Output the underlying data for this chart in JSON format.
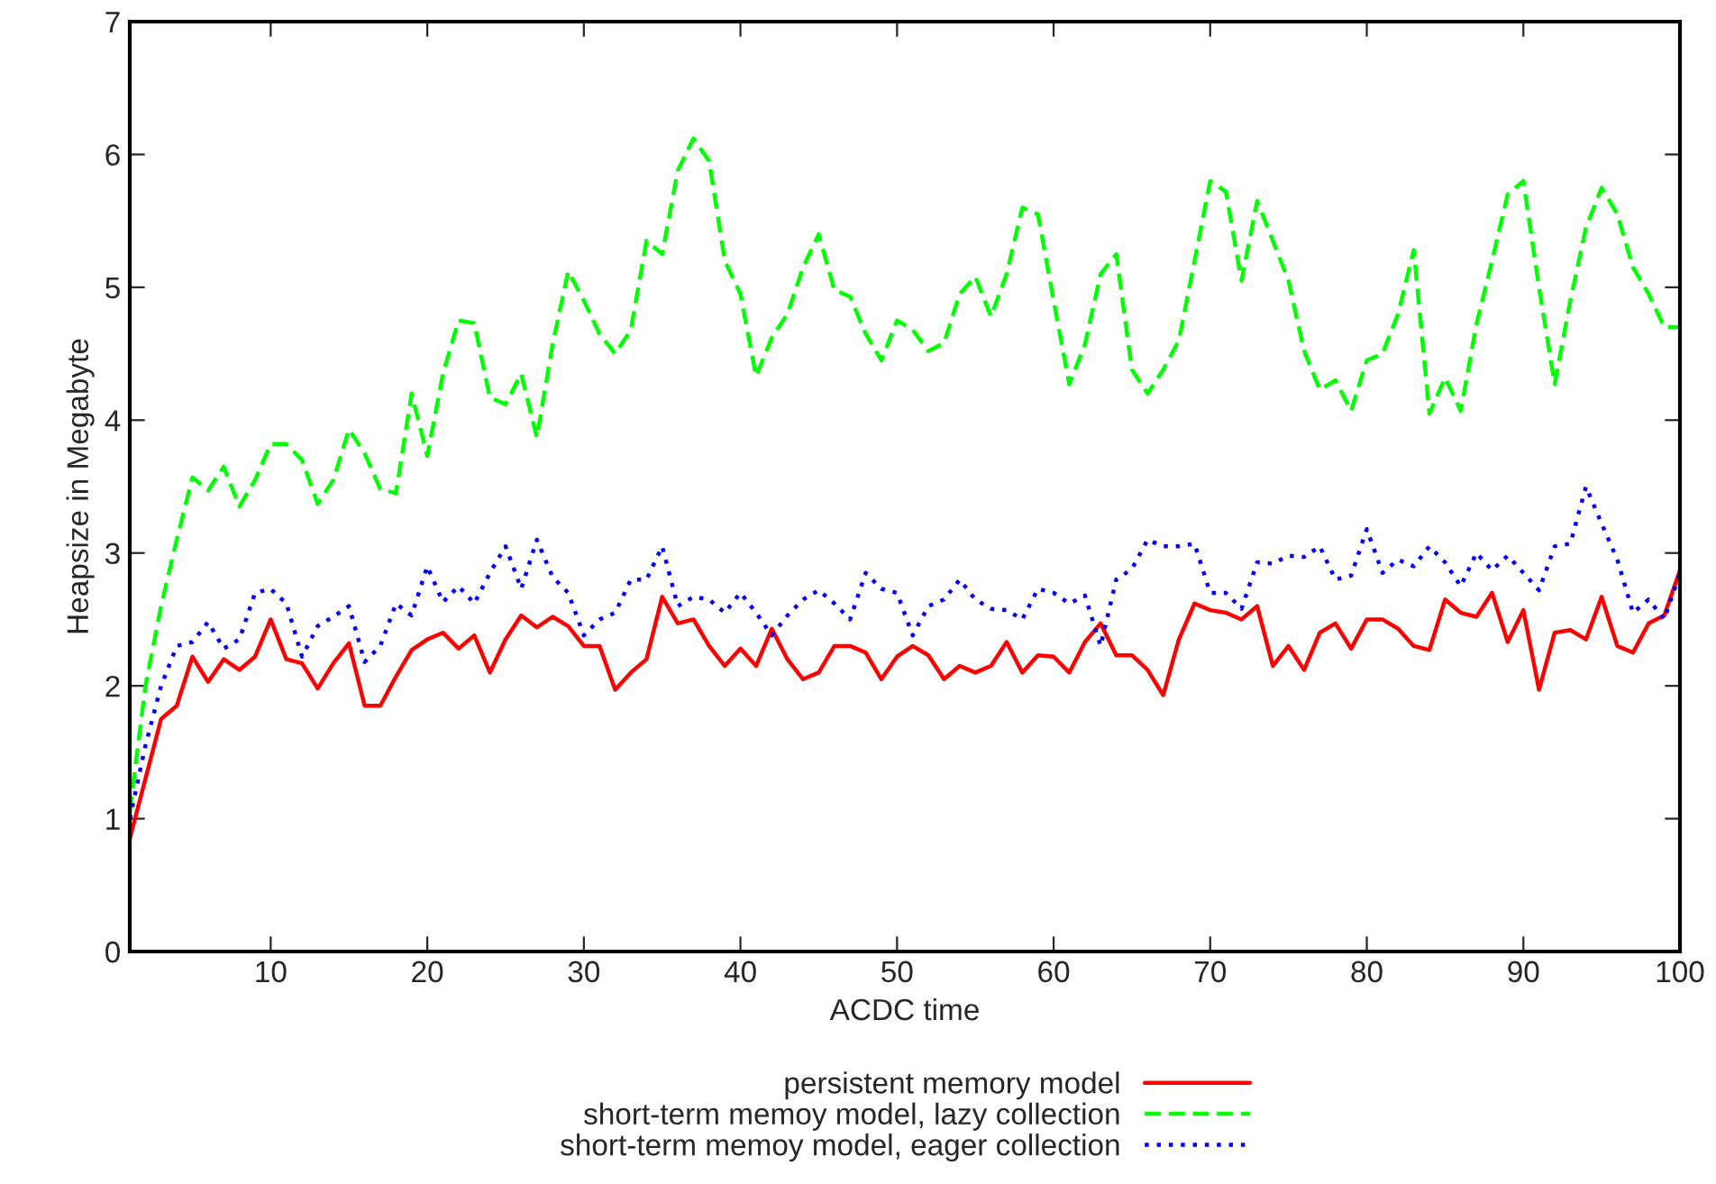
{
  "chart_data": {
    "type": "line",
    "xlabel": "ACDC time",
    "ylabel": "Heapsize in Megabyte",
    "x": [
      1,
      2,
      3,
      4,
      5,
      6,
      7,
      8,
      9,
      10,
      11,
      12,
      13,
      14,
      15,
      16,
      17,
      18,
      19,
      20,
      21,
      22,
      23,
      24,
      25,
      26,
      27,
      28,
      29,
      30,
      31,
      32,
      33,
      34,
      35,
      36,
      37,
      38,
      39,
      40,
      41,
      42,
      43,
      44,
      45,
      46,
      47,
      48,
      49,
      50,
      51,
      52,
      53,
      54,
      55,
      56,
      57,
      58,
      59,
      60,
      61,
      62,
      63,
      64,
      65,
      66,
      67,
      68,
      69,
      70,
      71,
      72,
      73,
      74,
      75,
      76,
      77,
      78,
      79,
      80,
      81,
      82,
      83,
      84,
      85,
      86,
      87,
      88,
      89,
      90,
      91,
      92,
      93,
      94,
      95,
      96,
      97,
      98,
      99,
      100
    ],
    "series": [
      {
        "name": "persistent memory model",
        "color": "#ff0000",
        "line_style": "solid",
        "values": [
          0.85,
          1.3,
          1.75,
          1.85,
          2.22,
          2.03,
          2.2,
          2.12,
          2.22,
          2.5,
          2.2,
          2.17,
          1.98,
          2.17,
          2.32,
          1.85,
          1.85,
          2.07,
          2.27,
          2.35,
          2.4,
          2.28,
          2.38,
          2.1,
          2.35,
          2.53,
          2.44,
          2.52,
          2.45,
          2.3,
          2.3,
          1.97,
          2.1,
          2.2,
          2.67,
          2.47,
          2.5,
          2.3,
          2.15,
          2.28,
          2.15,
          2.43,
          2.2,
          2.05,
          2.1,
          2.3,
          2.3,
          2.25,
          2.05,
          2.22,
          2.3,
          2.23,
          2.05,
          2.15,
          2.1,
          2.15,
          2.33,
          2.1,
          2.23,
          2.22,
          2.1,
          2.33,
          2.47,
          2.23,
          2.23,
          2.12,
          1.93,
          2.35,
          2.62,
          2.57,
          2.55,
          2.5,
          2.6,
          2.15,
          2.3,
          2.12,
          2.4,
          2.47,
          2.28,
          2.5,
          2.5,
          2.43,
          2.3,
          2.27,
          2.65,
          2.55,
          2.52,
          2.7,
          2.33,
          2.57,
          1.97,
          2.4,
          2.42,
          2.35,
          2.67,
          2.3,
          2.25,
          2.47,
          2.53,
          2.87
        ]
      },
      {
        "name": "short-term memoy model, lazy collection",
        "color": "#00ff00",
        "line_style": "dashed",
        "values": [
          1.05,
          2.0,
          2.6,
          3.1,
          3.57,
          3.47,
          3.65,
          3.35,
          3.55,
          3.82,
          3.82,
          3.7,
          3.37,
          3.55,
          3.93,
          3.75,
          3.48,
          3.45,
          4.2,
          3.73,
          4.35,
          4.75,
          4.73,
          4.17,
          4.12,
          4.35,
          3.87,
          4.57,
          5.12,
          4.9,
          4.65,
          4.5,
          4.68,
          5.35,
          5.25,
          5.88,
          6.12,
          5.95,
          5.2,
          4.95,
          4.33,
          4.62,
          4.8,
          5.15,
          5.4,
          4.98,
          4.93,
          4.65,
          4.45,
          4.75,
          4.68,
          4.52,
          4.58,
          4.95,
          5.08,
          4.78,
          5.1,
          5.6,
          5.55,
          4.9,
          4.27,
          4.57,
          5.1,
          5.25,
          4.38,
          4.2,
          4.38,
          4.6,
          5.2,
          5.8,
          5.72,
          5.05,
          5.65,
          5.35,
          5.05,
          4.52,
          4.23,
          4.3,
          4.07,
          4.45,
          4.5,
          4.8,
          5.28,
          4.05,
          4.32,
          4.07,
          4.72,
          5.2,
          5.7,
          5.8,
          5.0,
          4.27,
          4.9,
          5.45,
          5.75,
          5.55,
          5.15,
          4.95,
          4.7,
          4.7
        ]
      },
      {
        "name": "short-term memoy model, eager collection",
        "color": "#0000ff",
        "line_style": "dotted",
        "values": [
          1.0,
          1.55,
          2.0,
          2.3,
          2.33,
          2.48,
          2.28,
          2.35,
          2.7,
          2.73,
          2.62,
          2.22,
          2.45,
          2.52,
          2.6,
          2.18,
          2.3,
          2.62,
          2.53,
          2.9,
          2.63,
          2.75,
          2.62,
          2.85,
          3.05,
          2.73,
          3.1,
          2.82,
          2.7,
          2.38,
          2.5,
          2.55,
          2.8,
          2.8,
          3.05,
          2.6,
          2.67,
          2.65,
          2.55,
          2.7,
          2.55,
          2.38,
          2.53,
          2.65,
          2.72,
          2.62,
          2.5,
          2.85,
          2.73,
          2.7,
          2.38,
          2.6,
          2.65,
          2.8,
          2.65,
          2.58,
          2.57,
          2.5,
          2.73,
          2.7,
          2.62,
          2.68,
          2.3,
          2.8,
          2.88,
          3.1,
          3.05,
          3.05,
          3.07,
          2.7,
          2.7,
          2.58,
          2.93,
          2.92,
          2.98,
          2.97,
          3.05,
          2.8,
          2.83,
          3.18,
          2.85,
          2.95,
          2.9,
          3.05,
          2.93,
          2.75,
          3.0,
          2.87,
          2.98,
          2.85,
          2.72,
          3.05,
          3.07,
          3.5,
          3.22,
          2.95,
          2.55,
          2.65,
          2.5,
          2.85
        ]
      }
    ],
    "xlim": [
      1,
      100
    ],
    "xticks": [
      10,
      20,
      30,
      40,
      50,
      60,
      70,
      80,
      90,
      100
    ],
    "ylim": [
      0,
      7
    ],
    "yticks": [
      0,
      1,
      2,
      3,
      4,
      5,
      6,
      7
    ],
    "grid": false,
    "legend": "bottom"
  }
}
